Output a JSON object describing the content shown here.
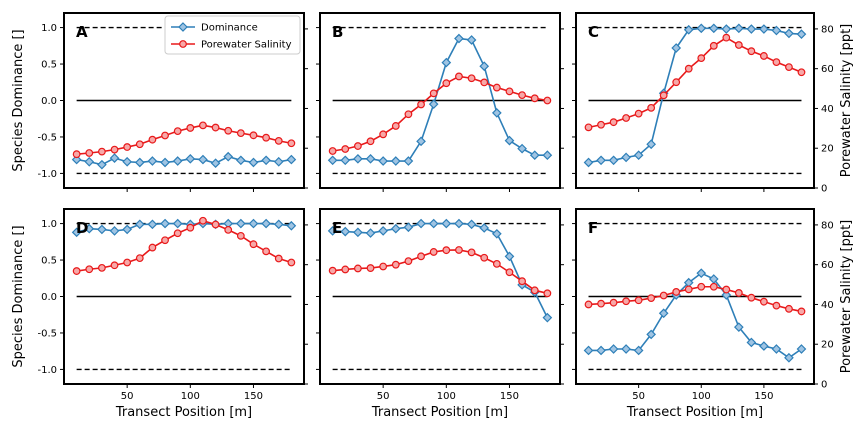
{
  "legend": {
    "dominance_label": "Dominance",
    "salinity_label": "Porewater Salinity"
  },
  "axis_labels": {
    "left_y": "Species Dominance []",
    "right_y": "Porewater Salinity [ppt]",
    "x": "Transect Position [m]"
  },
  "colors": {
    "dominance": "#2e7fb8",
    "dominance_face": "#9fc4e3",
    "salinity": "#e8191a",
    "salinity_face": "#f7a8a8",
    "reference": "#000000"
  },
  "chart_data": {
    "type": "line",
    "x": [
      10,
      20,
      30,
      40,
      50,
      60,
      70,
      80,
      90,
      100,
      110,
      120,
      130,
      140,
      150,
      160,
      170,
      180
    ],
    "xlabel": "Transect Position [m]",
    "xticks": [
      50,
      100,
      150
    ],
    "xlim": [
      0,
      190
    ],
    "ylabel_left": "Species Dominance []",
    "ylim_left": [
      -1.2,
      1.2
    ],
    "yticks_left": [
      -1.0,
      -0.5,
      0.0,
      0.5,
      1.0
    ],
    "ylabel_right": "Porewater Salinity [ppt]",
    "ylim_right": [
      0,
      88
    ],
    "yticks_right": [
      0,
      20,
      40,
      60,
      80
    ],
    "reference_lines": {
      "dashed": [
        -1.0,
        1.0
      ],
      "solid": [
        0.0
      ]
    },
    "legend_position": "top-left of panel A",
    "panels": [
      {
        "label": "A",
        "series": [
          {
            "name": "Dominance",
            "axis": "left",
            "values": [
              -0.81,
              -0.84,
              -0.88,
              -0.79,
              -0.84,
              -0.85,
              -0.83,
              -0.85,
              -0.83,
              -0.8,
              -0.81,
              -0.86,
              -0.77,
              -0.82,
              -0.85,
              -0.82,
              -0.84,
              -0.81
            ]
          },
          {
            "name": "Porewater Salinity",
            "axis": "right",
            "values": [
              17,
              17.6,
              18.3,
              19.3,
              20.6,
              22,
              24.3,
              26.4,
              28.6,
              30.2,
              31.5,
              30.4,
              28.8,
              27.6,
              26.5,
              25.3,
              23.7,
              22.5
            ]
          }
        ]
      },
      {
        "label": "B",
        "series": [
          {
            "name": "Dominance",
            "axis": "left",
            "values": [
              -0.82,
              -0.82,
              -0.8,
              -0.8,
              -0.83,
              -0.83,
              -0.83,
              -0.56,
              -0.05,
              0.52,
              0.85,
              0.83,
              0.47,
              -0.17,
              -0.55,
              -0.66,
              -0.75,
              -0.75
            ]
          },
          {
            "name": "Porewater Salinity",
            "axis": "right",
            "values": [
              18.6,
              19.6,
              21.1,
              23.5,
              27,
              31.2,
              37.1,
              42,
              47.6,
              52.7,
              56.1,
              55.2,
              53.1,
              50.5,
              48.6,
              46.7,
              45.1,
              44
            ]
          }
        ]
      },
      {
        "label": "C",
        "series": [
          {
            "name": "Dominance",
            "axis": "left",
            "values": [
              -0.85,
              -0.82,
              -0.82,
              -0.78,
              -0.75,
              -0.6,
              0.1,
              0.72,
              0.97,
              0.99,
              0.99,
              0.98,
              0.99,
              0.98,
              0.98,
              0.96,
              0.92,
              0.91
            ]
          },
          {
            "name": "Porewater Salinity",
            "axis": "right",
            "values": [
              30.5,
              31.8,
              33.1,
              35.2,
              37.4,
              40.3,
              46.6,
              53.2,
              60,
              65.3,
              71.5,
              75.6,
              71.9,
              68.8,
              66.4,
              63.3,
              60.8,
              58.2
            ]
          }
        ]
      },
      {
        "label": "D",
        "series": [
          {
            "name": "Dominance",
            "axis": "left",
            "values": [
              0.88,
              0.93,
              0.92,
              0.9,
              0.92,
              0.99,
              0.99,
              1.0,
              1.0,
              0.99,
              1.0,
              0.99,
              1.0,
              1.0,
              1.0,
              1.0,
              0.99,
              0.97
            ]
          },
          {
            "name": "Porewater Salinity",
            "axis": "right",
            "values": [
              56.8,
              57.7,
              58.4,
              59.7,
              61.1,
              63.3,
              68.6,
              72.3,
              75.8,
              78.6,
              82.1,
              80.2,
              77.5,
              74.5,
              70.3,
              66.7,
              63.1,
              61.1
            ]
          }
        ]
      },
      {
        "label": "E",
        "series": [
          {
            "name": "Dominance",
            "axis": "left",
            "values": [
              0.9,
              0.89,
              0.88,
              0.87,
              0.9,
              0.93,
              0.95,
              1.0,
              1.0,
              1.0,
              1.0,
              0.99,
              0.94,
              0.86,
              0.55,
              0.16,
              0.06,
              -0.29
            ]
          },
          {
            "name": "Porewater Salinity",
            "axis": "right",
            "values": [
              57,
              57.6,
              58.1,
              58.3,
              59.1,
              60,
              61.8,
              64.2,
              66.4,
              67.3,
              67.4,
              66.2,
              63.5,
              60.4,
              56.2,
              51.7,
              47.1,
              45.6
            ]
          }
        ]
      },
      {
        "label": "F",
        "series": [
          {
            "name": "Dominance",
            "axis": "left",
            "values": [
              -0.74,
              -0.74,
              -0.72,
              -0.72,
              -0.74,
              -0.52,
              -0.23,
              0.02,
              0.19,
              0.32,
              0.24,
              0.02,
              -0.42,
              -0.63,
              -0.68,
              -0.72,
              -0.84,
              -0.72
            ]
          },
          {
            "name": "Porewater Salinity",
            "axis": "right",
            "values": [
              40,
              40.4,
              40.9,
              41.6,
              42.1,
              43.2,
              44.5,
              46.3,
              47.6,
              48.9,
              48.9,
              47.5,
              45.8,
              43.4,
              41.4,
              39.4,
              37.8,
              36.5
            ]
          }
        ]
      }
    ]
  }
}
